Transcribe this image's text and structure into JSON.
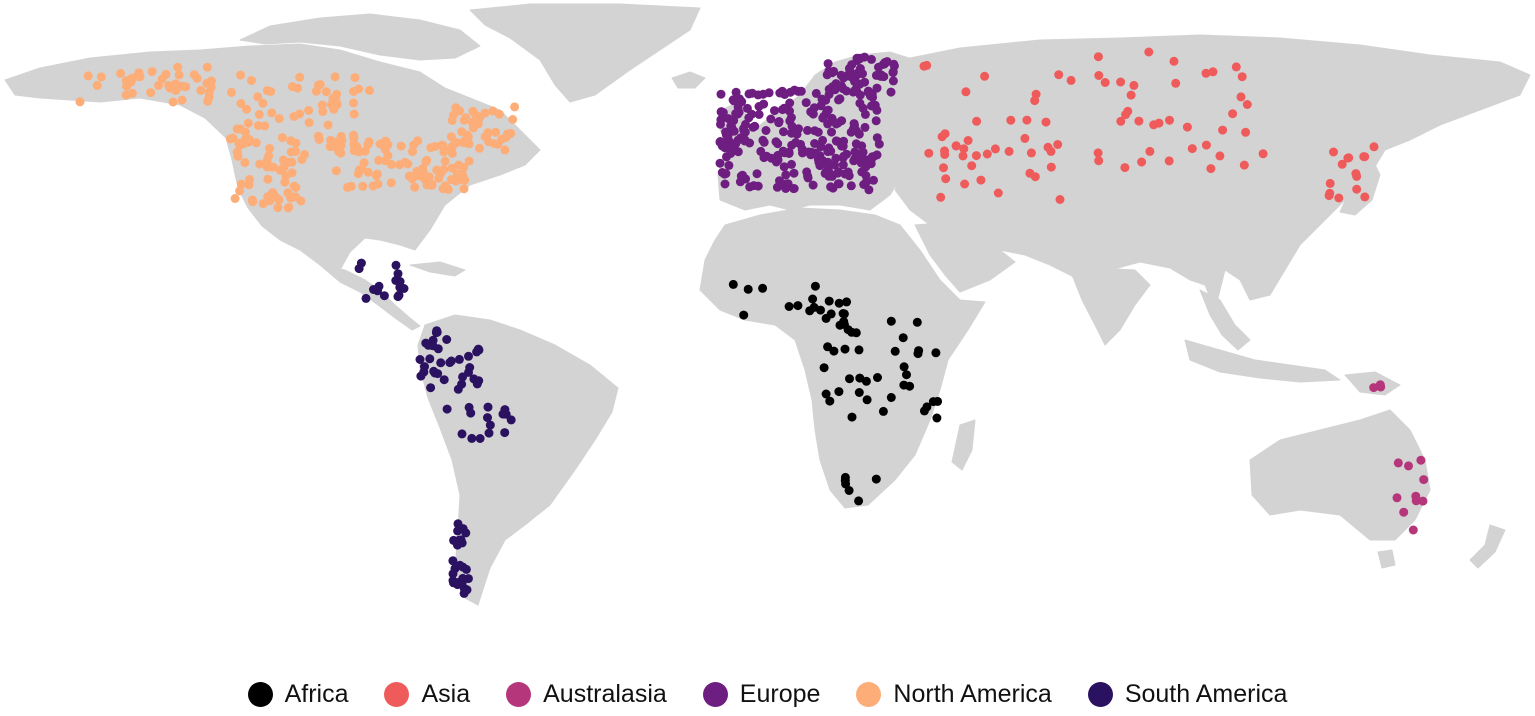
{
  "legend": [
    {
      "id": "africa",
      "label": "Africa",
      "color": "#000000"
    },
    {
      "id": "asia",
      "label": "Asia",
      "color": "#ef5b5b"
    },
    {
      "id": "australasia",
      "label": "Australasia",
      "color": "#b5367a"
    },
    {
      "id": "europe",
      "label": "Europe",
      "color": "#6e1d80"
    },
    {
      "id": "north_america",
      "label": "North America",
      "color": "#fdad78"
    },
    {
      "id": "south_america",
      "label": "South America",
      "color": "#2b1260"
    }
  ],
  "land_color": "#d3d3d3"
}
